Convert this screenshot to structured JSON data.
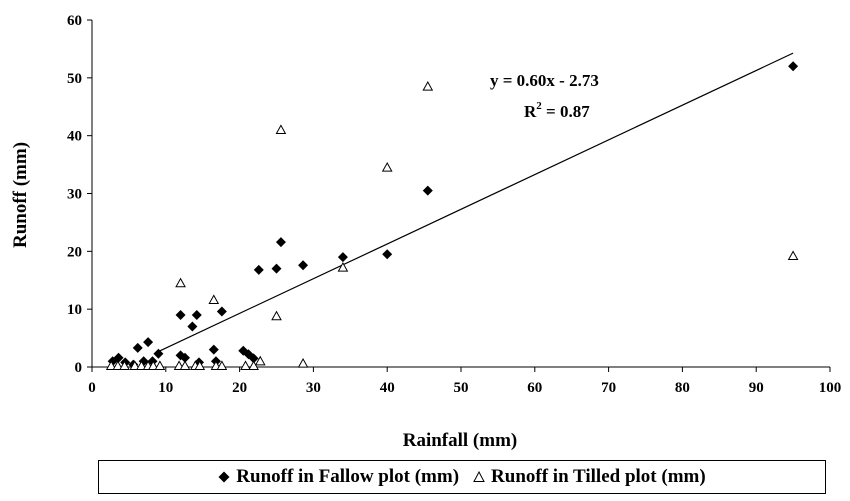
{
  "chart_data": {
    "type": "scatter",
    "xlabel": "Rainfall (mm)",
    "ylabel": "Runoff (mm)",
    "xlim": [
      0,
      100
    ],
    "ylim": [
      0,
      60
    ],
    "x_ticks": [
      "0",
      "10",
      "20",
      "30",
      "40",
      "50",
      "60",
      "70",
      "80",
      "90",
      "100"
    ],
    "y_ticks": [
      "0",
      "10",
      "20",
      "30",
      "40",
      "50",
      "60"
    ],
    "grid": false,
    "legend_position": "bottom",
    "series": [
      {
        "name": "Runoff in  Fallow plot  (mm)",
        "marker": "filled-diamond",
        "color": "#000000",
        "points": [
          {
            "x": 2.8,
            "y": 1.0
          },
          {
            "x": 3.6,
            "y": 1.6
          },
          {
            "x": 4.5,
            "y": 0.8
          },
          {
            "x": 5.6,
            "y": 0.4
          },
          {
            "x": 6.2,
            "y": 3.3
          },
          {
            "x": 7.0,
            "y": 1.0
          },
          {
            "x": 7.6,
            "y": 4.3
          },
          {
            "x": 8.2,
            "y": 1.0
          },
          {
            "x": 9.0,
            "y": 2.3
          },
          {
            "x": 12.0,
            "y": 2.0
          },
          {
            "x": 12.0,
            "y": 9.0
          },
          {
            "x": 12.6,
            "y": 1.6
          },
          {
            "x": 13.6,
            "y": 7.0
          },
          {
            "x": 14.2,
            "y": 9.0
          },
          {
            "x": 14.5,
            "y": 0.8
          },
          {
            "x": 16.5,
            "y": 3.0
          },
          {
            "x": 16.8,
            "y": 1.0
          },
          {
            "x": 17.6,
            "y": 9.6
          },
          {
            "x": 20.5,
            "y": 2.8
          },
          {
            "x": 21.2,
            "y": 2.2
          },
          {
            "x": 21.9,
            "y": 1.5
          },
          {
            "x": 22.6,
            "y": 16.8
          },
          {
            "x": 25.0,
            "y": 17.0
          },
          {
            "x": 25.6,
            "y": 21.6
          },
          {
            "x": 28.6,
            "y": 17.6
          },
          {
            "x": 34.0,
            "y": 19.0
          },
          {
            "x": 40.0,
            "y": 19.5
          },
          {
            "x": 45.5,
            "y": 30.5
          },
          {
            "x": 95.0,
            "y": 52.0
          }
        ]
      },
      {
        "name": "Runoff in  Tilled plot  (mm)",
        "marker": "open-triangle",
        "color": "#000000",
        "points": [
          {
            "x": 2.6,
            "y": 0.2
          },
          {
            "x": 3.5,
            "y": 0.2
          },
          {
            "x": 4.4,
            "y": 0.2
          },
          {
            "x": 5.8,
            "y": 0.2
          },
          {
            "x": 6.7,
            "y": 0.2
          },
          {
            "x": 7.6,
            "y": 0.2
          },
          {
            "x": 8.3,
            "y": 0.2
          },
          {
            "x": 9.2,
            "y": 0.2
          },
          {
            "x": 11.8,
            "y": 0.2
          },
          {
            "x": 12.0,
            "y": 14.5
          },
          {
            "x": 12.6,
            "y": 0.2
          },
          {
            "x": 14.0,
            "y": 0.2
          },
          {
            "x": 14.6,
            "y": 0.2
          },
          {
            "x": 16.5,
            "y": 11.6
          },
          {
            "x": 16.8,
            "y": 0.2
          },
          {
            "x": 17.6,
            "y": 0.2
          },
          {
            "x": 20.8,
            "y": 0.2
          },
          {
            "x": 21.9,
            "y": 0.2
          },
          {
            "x": 22.8,
            "y": 1.0
          },
          {
            "x": 25.0,
            "y": 8.8
          },
          {
            "x": 25.6,
            "y": 41.0
          },
          {
            "x": 28.6,
            "y": 0.6
          },
          {
            "x": 34.0,
            "y": 17.2
          },
          {
            "x": 40.0,
            "y": 34.5
          },
          {
            "x": 45.5,
            "y": 48.5
          },
          {
            "x": 95.0,
            "y": 19.2
          }
        ]
      }
    ],
    "trendline": {
      "slope": 0.6,
      "intercept": -2.73,
      "x_range": [
        9.0,
        95.0
      ],
      "equation_label": "y = 0.60x - 2.73",
      "r2_prefix": "R",
      "r2_sup": "2",
      "r2_suffix": " = 0.87"
    }
  }
}
